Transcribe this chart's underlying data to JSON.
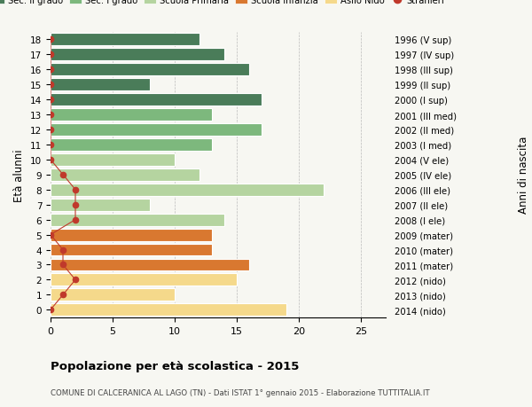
{
  "ages": [
    18,
    17,
    16,
    15,
    14,
    13,
    12,
    11,
    10,
    9,
    8,
    7,
    6,
    5,
    4,
    3,
    2,
    1,
    0
  ],
  "right_labels": [
    "1996 (V sup)",
    "1997 (IV sup)",
    "1998 (III sup)",
    "1999 (II sup)",
    "2000 (I sup)",
    "2001 (III med)",
    "2002 (II med)",
    "2003 (I med)",
    "2004 (V ele)",
    "2005 (IV ele)",
    "2006 (III ele)",
    "2007 (II ele)",
    "2008 (I ele)",
    "2009 (mater)",
    "2010 (mater)",
    "2011 (mater)",
    "2012 (nido)",
    "2013 (nido)",
    "2014 (nido)"
  ],
  "bar_values": [
    12,
    14,
    16,
    8,
    17,
    13,
    17,
    13,
    10,
    12,
    22,
    8,
    14,
    13,
    13,
    16,
    15,
    10,
    19
  ],
  "bar_colors": [
    "#4a7c59",
    "#4a7c59",
    "#4a7c59",
    "#4a7c59",
    "#4a7c59",
    "#7db87d",
    "#7db87d",
    "#7db87d",
    "#b5d4a0",
    "#b5d4a0",
    "#b5d4a0",
    "#b5d4a0",
    "#b5d4a0",
    "#d97830",
    "#d97830",
    "#d97830",
    "#f5d98b",
    "#f5d98b",
    "#f5d98b"
  ],
  "stranieri_ages": [
    18,
    17,
    16,
    15,
    14,
    13,
    12,
    11,
    10,
    9,
    8,
    7,
    6,
    5,
    4,
    3,
    2,
    1,
    0
  ],
  "stranieri_values": [
    0,
    0,
    0,
    0,
    0,
    0,
    0,
    0,
    0,
    1,
    2,
    2,
    2,
    0,
    1,
    1,
    2,
    1,
    0
  ],
  "legend_labels": [
    "Sec. II grado",
    "Sec. I grado",
    "Scuola Primaria",
    "Scuola Infanzia",
    "Asilo Nido",
    "Stranieri"
  ],
  "legend_colors": [
    "#4a7c59",
    "#7db87d",
    "#b5d4a0",
    "#d97830",
    "#f5d98b",
    "#c0392b"
  ],
  "ylabel_left": "Età alunni",
  "ylabel_right": "Anni di nascita",
  "title": "Popolazione per età scolastica - 2015",
  "subtitle": "COMUNE DI CALCERANICA AL LAGO (TN) - Dati ISTAT 1° gennaio 2015 - Elaborazione TUTTITALIA.IT",
  "xlim": [
    0,
    27
  ],
  "bg_color": "#f7f7f2"
}
